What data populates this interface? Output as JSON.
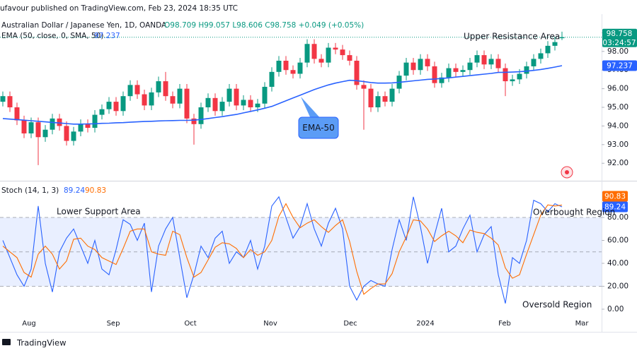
{
  "header": "ufavour published on TradingView.com, Feb 23, 2024 18:35 UTC",
  "footer": "TradingView",
  "chart_data": [
    {
      "type": "candlestick",
      "title": "Australian Dollar / Japanese Yen, 1D, OANDA",
      "ohlc_text": "O98.709 H99.057 L98.606 C98.758 +0.049 (+0.05%)",
      "countdown": "03:24:57",
      "up_color": "#089981",
      "down_color": "#f23645",
      "open": [
        95.3,
        95.6,
        95.0,
        94.3,
        93.6,
        94.2,
        93.4,
        93.8,
        94.4,
        94.0,
        93.2,
        93.7,
        94.1,
        93.9,
        94.6,
        94.9,
        95.3,
        94.8,
        95.6,
        96.2,
        95.7,
        95.1,
        95.8,
        96.4,
        95.6,
        95.2,
        96.0,
        94.4,
        94.1,
        95.0,
        95.5,
        94.8,
        95.3,
        96.0,
        95.1,
        95.4,
        95.0,
        95.2,
        96.1,
        96.9,
        97.5,
        97.0,
        96.8,
        97.4,
        98.4,
        97.6,
        97.4,
        98.2,
        98.1,
        97.8,
        97.5,
        96.2,
        96.0,
        95.0,
        95.6,
        95.3,
        96.0,
        96.7,
        97.4,
        97.0,
        97.6,
        97.2,
        96.3,
        96.6,
        97.1,
        96.9,
        97.0,
        97.4,
        97.8,
        97.3,
        97.6,
        97.1,
        96.4,
        96.5,
        96.8,
        97.2,
        97.6,
        97.9,
        98.3,
        98.709
      ],
      "high": [
        95.85,
        95.85,
        95.25,
        94.55,
        94.45,
        94.45,
        94.05,
        94.65,
        94.65,
        94.25,
        93.95,
        94.35,
        94.35,
        94.85,
        95.15,
        95.55,
        95.55,
        95.85,
        96.45,
        96.45,
        95.95,
        96.05,
        96.65,
        96.9,
        95.85,
        96.25,
        96.25,
        94.65,
        95.25,
        95.75,
        95.75,
        95.55,
        96.25,
        96.25,
        95.65,
        95.65,
        95.45,
        96.35,
        97.15,
        97.75,
        97.75,
        97.25,
        97.65,
        98.65,
        98.65,
        97.85,
        98.45,
        98.45,
        98.35,
        98.05,
        97.75,
        96.45,
        96.25,
        95.85,
        95.85,
        96.25,
        96.95,
        97.65,
        97.65,
        97.85,
        97.85,
        97.45,
        96.85,
        97.35,
        97.35,
        97.25,
        97.65,
        98.05,
        98.05,
        97.85,
        97.85,
        97.35,
        96.75,
        97.05,
        97.45,
        97.85,
        98.15,
        98.55,
        98.75,
        99.057
      ],
      "low": [
        95.05,
        94.75,
        94.05,
        93.35,
        93.35,
        91.9,
        93.15,
        93.55,
        93.75,
        92.95,
        92.95,
        93.45,
        93.65,
        93.65,
        94.35,
        94.65,
        94.55,
        94.55,
        95.35,
        95.45,
        94.85,
        94.85,
        95.55,
        95.35,
        94.95,
        94.95,
        94.15,
        93.0,
        93.85,
        94.75,
        94.55,
        94.55,
        95.05,
        94.85,
        94.85,
        94.75,
        94.75,
        94.95,
        95.85,
        96.65,
        96.75,
        96.55,
        96.55,
        97.15,
        97.35,
        97.15,
        97.15,
        97.85,
        97.55,
        97.25,
        95.95,
        93.8,
        94.75,
        94.75,
        95.05,
        95.05,
        95.75,
        96.45,
        96.75,
        96.75,
        96.95,
        96.05,
        96.05,
        96.35,
        96.65,
        96.65,
        96.75,
        97.15,
        97.05,
        97.05,
        96.85,
        95.6,
        96.15,
        96.25,
        96.55,
        96.95,
        97.35,
        97.65,
        98.05,
        98.606
      ],
      "close": [
        95.6,
        95.0,
        94.3,
        93.6,
        94.2,
        93.4,
        93.8,
        94.4,
        94.0,
        93.2,
        93.7,
        94.1,
        93.9,
        94.6,
        94.9,
        95.3,
        94.8,
        95.6,
        96.2,
        95.7,
        95.1,
        95.8,
        96.4,
        95.6,
        95.2,
        96.0,
        94.4,
        94.1,
        95.0,
        95.5,
        94.8,
        95.3,
        96.0,
        95.1,
        95.4,
        95.0,
        95.2,
        96.1,
        96.9,
        97.5,
        97.0,
        96.8,
        97.4,
        98.4,
        97.6,
        97.4,
        98.2,
        98.1,
        97.8,
        97.5,
        96.2,
        96.0,
        95.0,
        95.6,
        95.3,
        96.0,
        96.7,
        97.4,
        97.0,
        97.6,
        97.2,
        96.3,
        96.6,
        97.1,
        96.9,
        97.0,
        97.4,
        97.8,
        97.3,
        97.6,
        97.1,
        96.4,
        96.5,
        96.8,
        97.2,
        97.6,
        97.9,
        98.3,
        98.5,
        98.758
      ],
      "series": [
        {
          "name": "EMA (50, close, 0, SMA, 50)",
          "color": "#2962ff",
          "values": [
            94.4,
            94.37,
            94.34,
            94.31,
            94.28,
            94.25,
            94.22,
            94.19,
            94.16,
            94.13,
            94.1,
            94.1,
            94.11,
            94.12,
            94.14,
            94.15,
            94.17,
            94.18,
            94.2,
            94.22,
            94.24,
            94.25,
            94.27,
            94.28,
            94.29,
            94.3,
            94.3,
            94.31,
            94.35,
            94.4,
            94.45,
            94.5,
            94.56,
            94.62,
            94.7,
            94.78,
            94.86,
            94.95,
            95.05,
            95.2,
            95.35,
            95.5,
            95.65,
            95.8,
            95.95,
            96.08,
            96.2,
            96.3,
            96.38,
            96.45,
            96.43,
            96.38,
            96.33,
            96.3,
            96.3,
            96.31,
            96.34,
            96.38,
            96.42,
            96.46,
            96.5,
            96.52,
            96.55,
            96.58,
            96.62,
            96.66,
            96.7,
            96.74,
            96.78,
            96.82,
            96.87,
            96.88,
            96.89,
            96.91,
            96.94,
            96.98,
            97.03,
            97.09,
            97.16,
            97.237
          ]
        }
      ],
      "xlim": [
        -0.4,
        84.6
      ],
      "ylim": [
        91.1,
        100.0
      ],
      "yticks": [
        {
          "value": 92,
          "label": "92.00"
        },
        {
          "value": 93,
          "label": "93.00"
        },
        {
          "value": 94,
          "label": "94.00"
        },
        {
          "value": 95,
          "label": "95.00"
        },
        {
          "value": 96,
          "label": "96.00"
        },
        {
          "value": 97,
          "label": "97.00"
        },
        {
          "value": 98,
          "label": "98.00"
        },
        {
          "value": 99,
          "label": "99.00"
        }
      ],
      "annotations": [
        "Upper Resistance Area",
        "EMA-50"
      ]
    },
    {
      "type": "line",
      "title": "Stoch (14, 1, 3)",
      "series": [
        {
          "name": "%K",
          "color": "#2962ff",
          "values": [
            60,
            45,
            30,
            20,
            35,
            90,
            40,
            15,
            50,
            62,
            70,
            55,
            40,
            60,
            35,
            30,
            52,
            78,
            74,
            60,
            75,
            15,
            55,
            70,
            80,
            45,
            10,
            30,
            55,
            45,
            62,
            68,
            40,
            50,
            45,
            60,
            35,
            55,
            90,
            98,
            80,
            62,
            72,
            92,
            70,
            55,
            75,
            88,
            70,
            20,
            8,
            20,
            25,
            22,
            20,
            52,
            78,
            60,
            98,
            72,
            40,
            65,
            88,
            50,
            55,
            70,
            82,
            50,
            65,
            72,
            30,
            5,
            45,
            40,
            60,
            95,
            92,
            85,
            92,
            89.24
          ]
        },
        {
          "name": "%D",
          "color": "#ff6d00",
          "values": [
            55,
            50,
            45,
            32,
            28,
            48,
            55,
            48,
            35,
            42,
            61,
            62,
            55,
            52,
            45,
            42,
            39,
            53,
            68,
            70,
            70,
            50,
            48,
            47,
            68,
            65,
            45,
            28,
            32,
            43,
            54,
            58,
            57,
            53,
            45,
            52,
            47,
            50,
            60,
            81,
            92,
            80,
            71,
            75,
            78,
            72,
            67,
            73,
            78,
            59,
            33,
            13,
            18,
            22,
            22,
            31,
            50,
            63,
            78,
            77,
            70,
            59,
            64,
            68,
            64,
            58,
            69,
            67,
            66,
            62,
            56,
            36,
            27,
            30,
            48,
            65,
            82,
            91,
            90,
            90.83
          ]
        }
      ],
      "band": [
        20,
        80
      ],
      "hlines": [
        80,
        50,
        20
      ],
      "xlim": [
        -0.4,
        84.6
      ],
      "ylim": [
        -10.5,
        110.8
      ],
      "yticks": [
        {
          "value": 0,
          "label": "0.00"
        },
        {
          "value": 20,
          "label": "20.00"
        },
        {
          "value": 40,
          "label": "40.00"
        },
        {
          "value": 60,
          "label": "60.00"
        },
        {
          "value": 80,
          "label": "80.00"
        }
      ],
      "xticks": [
        {
          "value": 3.7,
          "label": "Aug"
        },
        {
          "value": 15.6,
          "label": "Sep"
        },
        {
          "value": 26.5,
          "label": "Oct"
        },
        {
          "value": 37.8,
          "label": "Nov"
        },
        {
          "value": 49.1,
          "label": "Dec"
        },
        {
          "value": 59.7,
          "label": "2024"
        },
        {
          "value": 70.9,
          "label": "Feb"
        },
        {
          "value": 81.8,
          "label": "Mar"
        }
      ],
      "annotations": [
        "Lower Support Area",
        "Overbought Region",
        "Oversold Region"
      ]
    }
  ]
}
